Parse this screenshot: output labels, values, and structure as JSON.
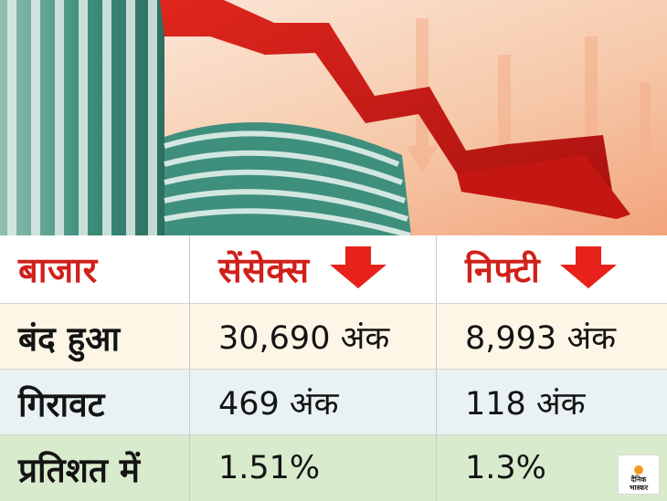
{
  "table": {
    "header": {
      "market": "बाजार",
      "sensex": "सेंसेक्स",
      "nifty": "निफ्टी"
    },
    "rows": [
      {
        "label": "बंद हुआ",
        "sensex": "30,690 अंक",
        "nifty": "8,993 अंक"
      },
      {
        "label": "गिरावट",
        "sensex": "469 अंक",
        "nifty": "118 अंक"
      },
      {
        "label": "प्रतिशत में",
        "sensex": "1.51%",
        "nifty": "1.3%"
      }
    ],
    "row_colors": [
      "#ffffff",
      "#fdf6e6",
      "#e8f2f3",
      "#d9ebcd"
    ],
    "arrow_color": "#e8221b"
  },
  "logo": {
    "line1": "दैनिक",
    "line2": "भास्कर"
  },
  "icons": [
    "stock-exchange-building-illustration",
    "falling-arrow-icon",
    "down-arrow-icon"
  ]
}
